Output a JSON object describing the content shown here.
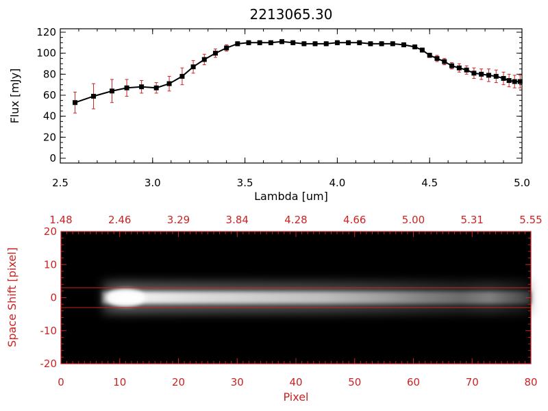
{
  "chart_data": [
    {
      "type": "line",
      "title": "2213065.30",
      "xlabel": "Lambda [um]",
      "ylabel": "Flux [mJy]",
      "xlim": [
        2.5,
        5.0
      ],
      "ylim": [
        0,
        120
      ],
      "x_ticks": [
        "2.5",
        "3.0",
        "3.5",
        "4.0",
        "4.5",
        "5.0"
      ],
      "y_ticks": [
        "0",
        "20",
        "40",
        "60",
        "80",
        "100",
        "120"
      ],
      "line_color": "#000000",
      "marker_color": "#000000",
      "errorbar_color": "#cc2222",
      "grid": false,
      "series": [
        {
          "x": [
            2.58,
            2.68,
            2.78,
            2.86,
            2.94,
            3.02,
            3.09,
            3.16,
            3.22,
            3.28,
            3.34,
            3.4,
            3.46,
            3.52,
            3.58,
            3.64,
            3.7,
            3.76,
            3.82,
            3.88,
            3.94,
            4.0,
            4.06,
            4.12,
            4.18,
            4.24,
            4.3,
            4.36,
            4.42,
            4.46,
            4.5,
            4.54,
            4.58,
            4.62,
            4.66,
            4.7,
            4.74,
            4.78,
            4.82,
            4.86,
            4.9,
            4.93,
            4.96,
            4.99
          ],
          "y": [
            53,
            59,
            64,
            67,
            68,
            67,
            71,
            78,
            87,
            94,
            100,
            105,
            109,
            110,
            110,
            110,
            111,
            110,
            109,
            109,
            109,
            110,
            110,
            110,
            109,
            109,
            109,
            108,
            106,
            103,
            98,
            95,
            92,
            88,
            86,
            84,
            81,
            80,
            79,
            78,
            76,
            74,
            73,
            73
          ],
          "yerr": [
            10,
            12,
            11,
            8,
            6,
            5,
            7,
            8,
            6,
            5,
            4,
            3,
            2,
            2,
            2,
            2,
            2,
            2,
            2,
            2,
            2,
            2,
            2,
            2,
            2,
            2,
            2,
            2,
            2,
            2,
            2,
            3,
            3,
            3,
            4,
            4,
            5,
            5,
            6,
            6,
            6,
            6,
            6,
            6
          ]
        }
      ]
    },
    {
      "type": "heatmap",
      "xlabel": "Pixel",
      "ylabel": "Space Shift [pixel]",
      "xlim": [
        0,
        80
      ],
      "ylim": [
        -20,
        20
      ],
      "x_ticks": [
        "0",
        "10",
        "20",
        "30",
        "40",
        "50",
        "60",
        "70",
        "80"
      ],
      "y_ticks": [
        "-20",
        "-10",
        "0",
        "10",
        "20"
      ],
      "top_axis_ticks": [
        "1.48",
        "2.46",
        "3.29",
        "3.84",
        "4.28",
        "4.66",
        "5.00",
        "5.31",
        "5.55"
      ],
      "extraction_window": [
        -3,
        3
      ],
      "colormap": "grayscale",
      "axis_color": "#cc2222",
      "trace": {
        "center": 0,
        "x_start": 7,
        "x_end": 80,
        "peak_x": 11,
        "profile": [
          {
            "x": 7,
            "brightness": 0.55
          },
          {
            "x": 9,
            "brightness": 0.9
          },
          {
            "x": 11,
            "brightness": 1.0
          },
          {
            "x": 15,
            "brightness": 0.92
          },
          {
            "x": 25,
            "brightness": 0.85
          },
          {
            "x": 35,
            "brightness": 0.8
          },
          {
            "x": 45,
            "brightness": 0.74
          },
          {
            "x": 55,
            "brightness": 0.62
          },
          {
            "x": 62,
            "brightness": 0.5
          },
          {
            "x": 68,
            "brightness": 0.42
          },
          {
            "x": 73,
            "brightness": 0.5
          },
          {
            "x": 78,
            "brightness": 0.32
          },
          {
            "x": 80,
            "brightness": 0.2
          }
        ]
      }
    }
  ]
}
